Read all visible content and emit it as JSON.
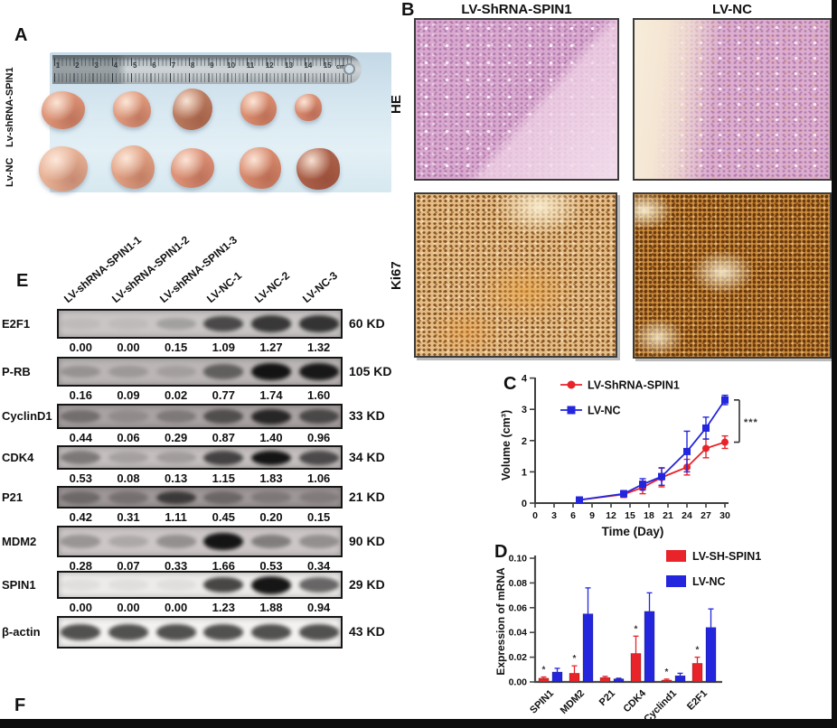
{
  "figure_labels": {
    "a": "A",
    "b": "B",
    "c": "C",
    "d": "D",
    "e": "E",
    "f": "F"
  },
  "panel_a": {
    "side_labels": [
      "Lv-shRNA-SPIN1",
      "Lv-NC"
    ],
    "ruler_numbers": [
      "1",
      "2",
      "3",
      "4",
      "5",
      "6",
      "7",
      "8",
      "9",
      "10",
      "11",
      "12",
      "13",
      "14",
      "15"
    ],
    "ruler_unit": "cm"
  },
  "panel_b": {
    "column_headers": [
      "LV-ShRNA-SPIN1",
      "LV-NC"
    ],
    "row_labels": [
      "HE",
      "Ki67"
    ]
  },
  "panel_e": {
    "lane_labels": [
      "LV-shRNA-SPIN1-1",
      "LV-shRNA-SPIN1-2",
      "LV-shRNA-SPIN1-3",
      "LV-NC-1",
      "LV-NC-2",
      "LV-NC-3"
    ],
    "rows": [
      {
        "protein": "E2F1",
        "size": "60 KD",
        "values": [
          "0.00",
          "0.00",
          "0.15",
          "1.09",
          "1.27",
          "1.32"
        ]
      },
      {
        "protein": "P-RB",
        "size": "105 KD",
        "values": [
          "0.16",
          "0.09",
          "0.02",
          "0.77",
          "1.74",
          "1.60"
        ]
      },
      {
        "protein": "CyclinD1",
        "size": "33 KD",
        "values": [
          "0.44",
          "0.06",
          "0.29",
          "0.87",
          "1.40",
          "0.96"
        ]
      },
      {
        "protein": "CDK4",
        "size": "34 KD",
        "values": [
          "0.53",
          "0.08",
          "0.13",
          "1.15",
          "1.83",
          "1.06"
        ]
      },
      {
        "protein": "P21",
        "size": "21 KD",
        "values": [
          "0.42",
          "0.31",
          "1.11",
          "0.45",
          "0.20",
          "0.15"
        ]
      },
      {
        "protein": "MDM2",
        "size": "90 KD",
        "values": [
          "0.28",
          "0.07",
          "0.33",
          "1.66",
          "0.53",
          "0.34"
        ]
      },
      {
        "protein": "SPIN1",
        "size": "29 KD",
        "values": [
          "0.00",
          "0.00",
          "0.00",
          "1.23",
          "1.88",
          "0.94"
        ]
      },
      {
        "protein": "β-actin",
        "size": "43 KD",
        "values": []
      }
    ]
  },
  "chart_data": [
    {
      "type": "line",
      "panel": "C",
      "xlabel": "Time (Day)",
      "ylabel": "Volume (cm³)",
      "x": [
        7,
        14,
        17,
        20,
        24,
        27,
        30
      ],
      "xticks": [
        0,
        3,
        6,
        9,
        12,
        15,
        18,
        21,
        24,
        27,
        30
      ],
      "yticks": [
        0,
        1,
        2,
        3,
        4
      ],
      "xlim": [
        0,
        30
      ],
      "ylim": [
        0,
        4
      ],
      "legend_position": "top-left",
      "series": [
        {
          "name": "LV-ShRNA-SPIN1",
          "color": "#e8232a",
          "marker": "circle",
          "values": [
            0.1,
            0.28,
            0.5,
            0.82,
            1.15,
            1.75,
            1.95
          ],
          "errors": [
            0.05,
            0.1,
            0.2,
            0.3,
            0.25,
            0.3,
            0.2
          ]
        },
        {
          "name": "LV-NC",
          "color": "#2326dd",
          "marker": "square",
          "values": [
            0.1,
            0.3,
            0.6,
            0.85,
            1.65,
            2.4,
            3.3
          ],
          "errors": [
            0.05,
            0.1,
            0.18,
            0.28,
            0.65,
            0.35,
            0.15
          ]
        }
      ],
      "significance": "***"
    },
    {
      "type": "bar",
      "panel": "D",
      "ylabel": "Expression of mRNA",
      "categories": [
        "SPIN1",
        "MDM2",
        "P21",
        "CDK4",
        "Cyclind1",
        "E2F1"
      ],
      "yticks": [
        "0.00",
        "0.02",
        "0.04",
        "0.06",
        "0.08",
        "0.10"
      ],
      "ylim": [
        0,
        0.1
      ],
      "legend_position": "top-right",
      "series": [
        {
          "name": "LV-SH-SPIN1",
          "color": "#e8232a",
          "values": [
            0.003,
            0.007,
            0.0035,
            0.023,
            0.0015,
            0.015
          ],
          "errors": [
            0.001,
            0.006,
            0.001,
            0.014,
            0.0008,
            0.005
          ]
        },
        {
          "name": "LV-NC",
          "color": "#2326dd",
          "values": [
            0.008,
            0.055,
            0.0025,
            0.057,
            0.005,
            0.044
          ],
          "errors": [
            0.003,
            0.021,
            0.0005,
            0.015,
            0.002,
            0.015
          ]
        }
      ],
      "significance_marks": [
        "*",
        "*",
        "",
        "*",
        "*",
        "*"
      ]
    }
  ],
  "colors": {
    "red": "#e8232a",
    "blue": "#2326dd"
  }
}
